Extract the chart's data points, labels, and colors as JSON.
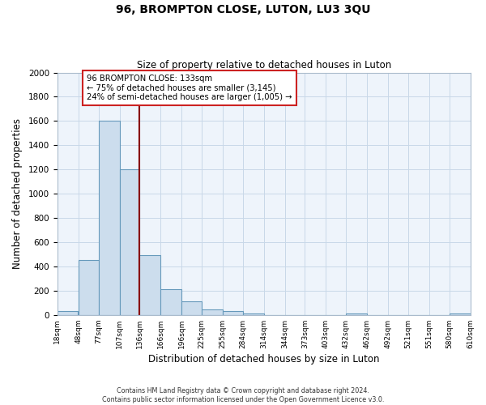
{
  "title_line1": "96, BROMPTON CLOSE, LUTON, LU3 3QU",
  "title_line2": "Size of property relative to detached houses in Luton",
  "xlabel": "Distribution of detached houses by size in Luton",
  "ylabel": "Number of detached properties",
  "bar_left_edges": [
    18,
    48,
    77,
    107,
    136,
    166,
    196,
    225,
    255,
    284,
    314,
    344,
    373,
    403,
    432,
    462,
    492,
    521,
    551,
    580
  ],
  "bar_widths": [
    29,
    29,
    30,
    29,
    30,
    30,
    29,
    30,
    29,
    30,
    30,
    29,
    30,
    29,
    30,
    30,
    29,
    30,
    29,
    30
  ],
  "bar_heights": [
    30,
    450,
    1600,
    1200,
    490,
    210,
    115,
    45,
    30,
    15,
    0,
    0,
    0,
    0,
    15,
    0,
    0,
    0,
    0,
    15
  ],
  "bar_color": "#ccdded",
  "bar_edge_color": "#6699bb",
  "tick_labels": [
    "18sqm",
    "48sqm",
    "77sqm",
    "107sqm",
    "136sqm",
    "166sqm",
    "196sqm",
    "225sqm",
    "255sqm",
    "284sqm",
    "314sqm",
    "344sqm",
    "373sqm",
    "403sqm",
    "432sqm",
    "462sqm",
    "492sqm",
    "521sqm",
    "551sqm",
    "580sqm",
    "610sqm"
  ],
  "ylim": [
    0,
    2000
  ],
  "yticks": [
    0,
    200,
    400,
    600,
    800,
    1000,
    1200,
    1400,
    1600,
    1800,
    2000
  ],
  "vline_x": 136,
  "vline_color": "#880000",
  "annotation_text": "96 BROMPTON CLOSE: 133sqm\n← 75% of detached houses are smaller (3,145)\n24% of semi-detached houses are larger (1,005) →",
  "annotation_box_color": "#ffffff",
  "annotation_box_edge": "#cc2222",
  "footer_line1": "Contains HM Land Registry data © Crown copyright and database right 2024.",
  "footer_line2": "Contains public sector information licensed under the Open Government Licence v3.0.",
  "background_color": "#ffffff",
  "plot_bg_color": "#eef4fb",
  "grid_color": "#c8d8e8"
}
